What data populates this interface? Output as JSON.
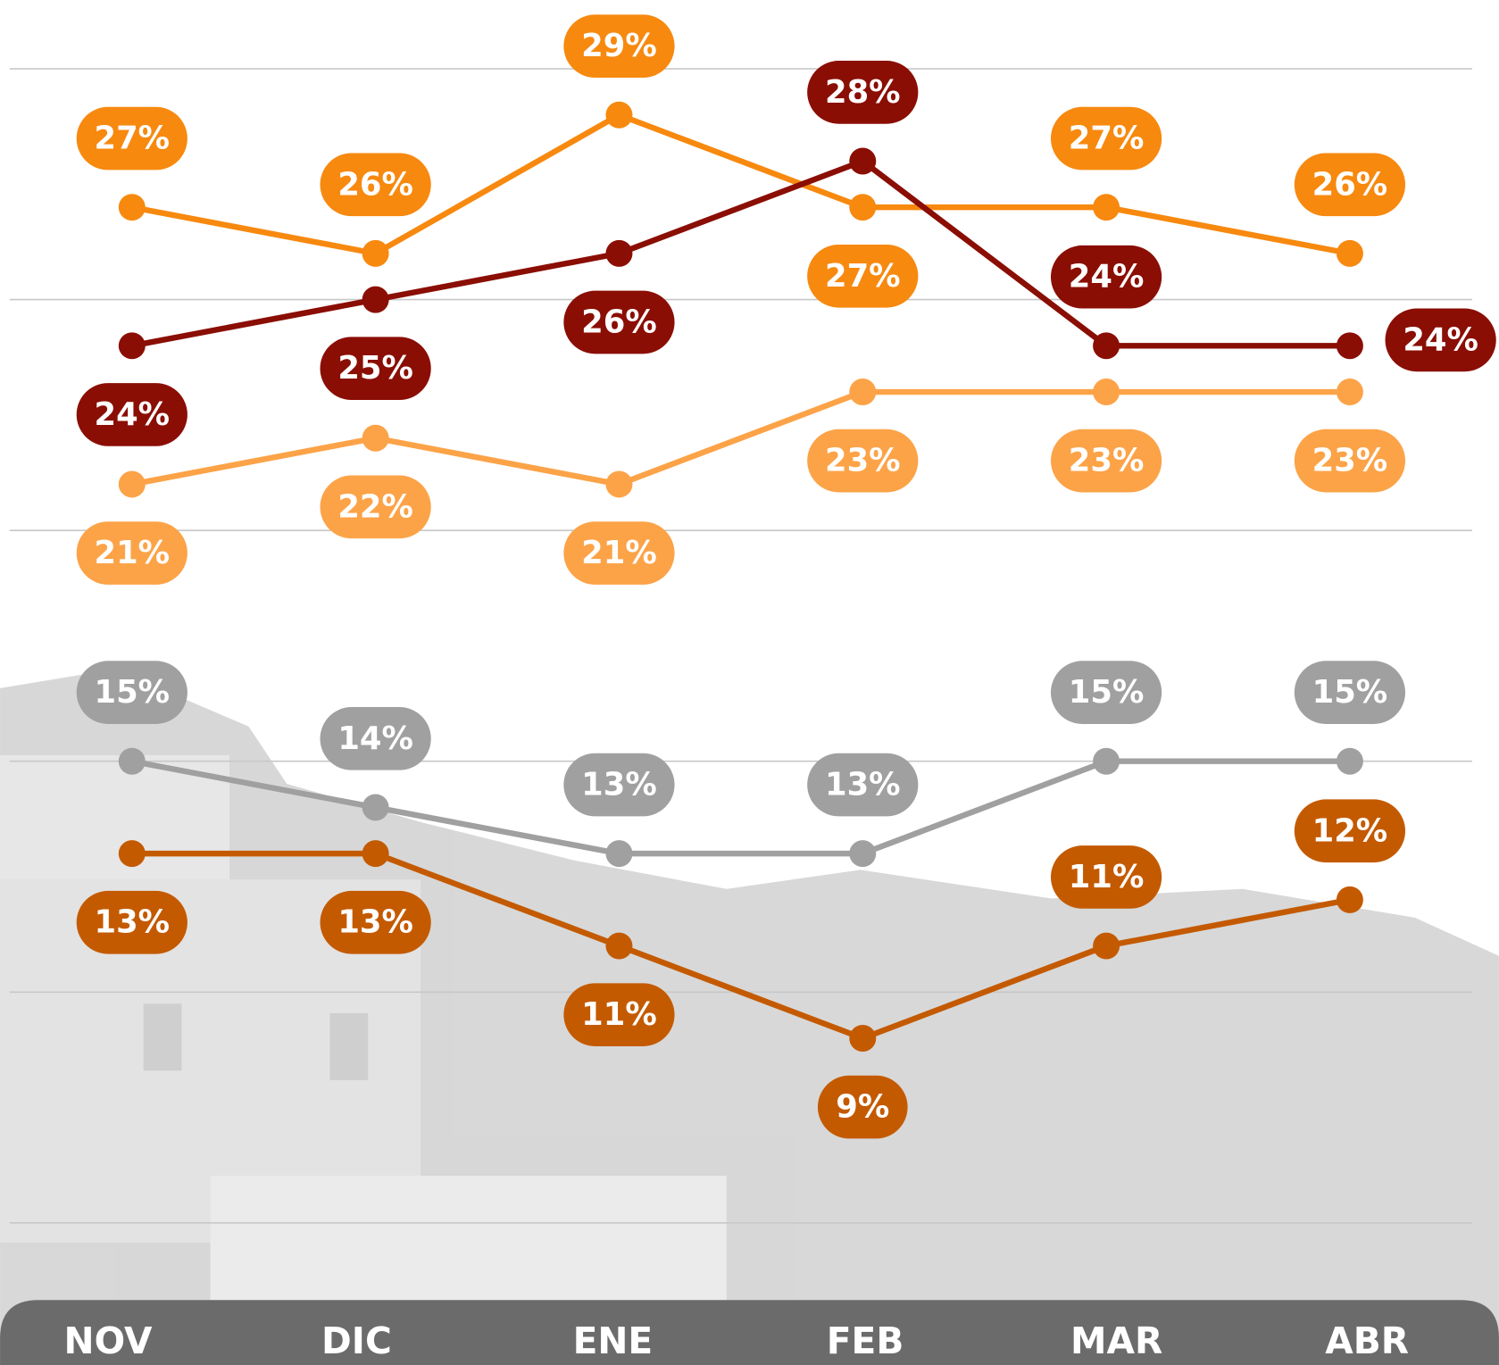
{
  "chart_data": {
    "type": "line",
    "categories": [
      "NOV",
      "DIC",
      "ENE",
      "FEB",
      "MAR",
      "ABR"
    ],
    "series": [
      {
        "color": "#f7890f",
        "values": [
          27,
          26,
          29,
          27,
          27,
          26
        ],
        "value_labels": [
          "27%",
          "26%",
          "29%",
          "27%",
          "27%",
          "26%"
        ]
      },
      {
        "color": "#8a0e04",
        "values": [
          24,
          25,
          26,
          28,
          24,
          24
        ],
        "value_labels": [
          "24%",
          "25%",
          "26%",
          "28%",
          "24%",
          "24%"
        ]
      },
      {
        "color": "#fca348",
        "values": [
          21,
          22,
          21,
          23,
          23,
          23
        ],
        "value_labels": [
          "21%",
          "22%",
          "21%",
          "23%",
          "23%",
          "23%"
        ]
      },
      {
        "color": "#a0a0a0",
        "values": [
          15,
          14,
          13,
          13,
          15,
          15
        ],
        "value_labels": [
          "15%",
          "14%",
          "13%",
          "13%",
          "15%",
          "15%"
        ]
      },
      {
        "color": "#c45a00",
        "values": [
          13,
          13,
          11,
          9,
          11,
          12
        ],
        "value_labels": [
          "13%",
          "13%",
          "11%",
          "9%",
          "11%",
          "12%"
        ]
      }
    ],
    "ylim": [
      3.33,
      31.49
    ],
    "yticks": [
      5,
      10,
      15,
      20,
      25,
      30
    ],
    "grid": true
  }
}
